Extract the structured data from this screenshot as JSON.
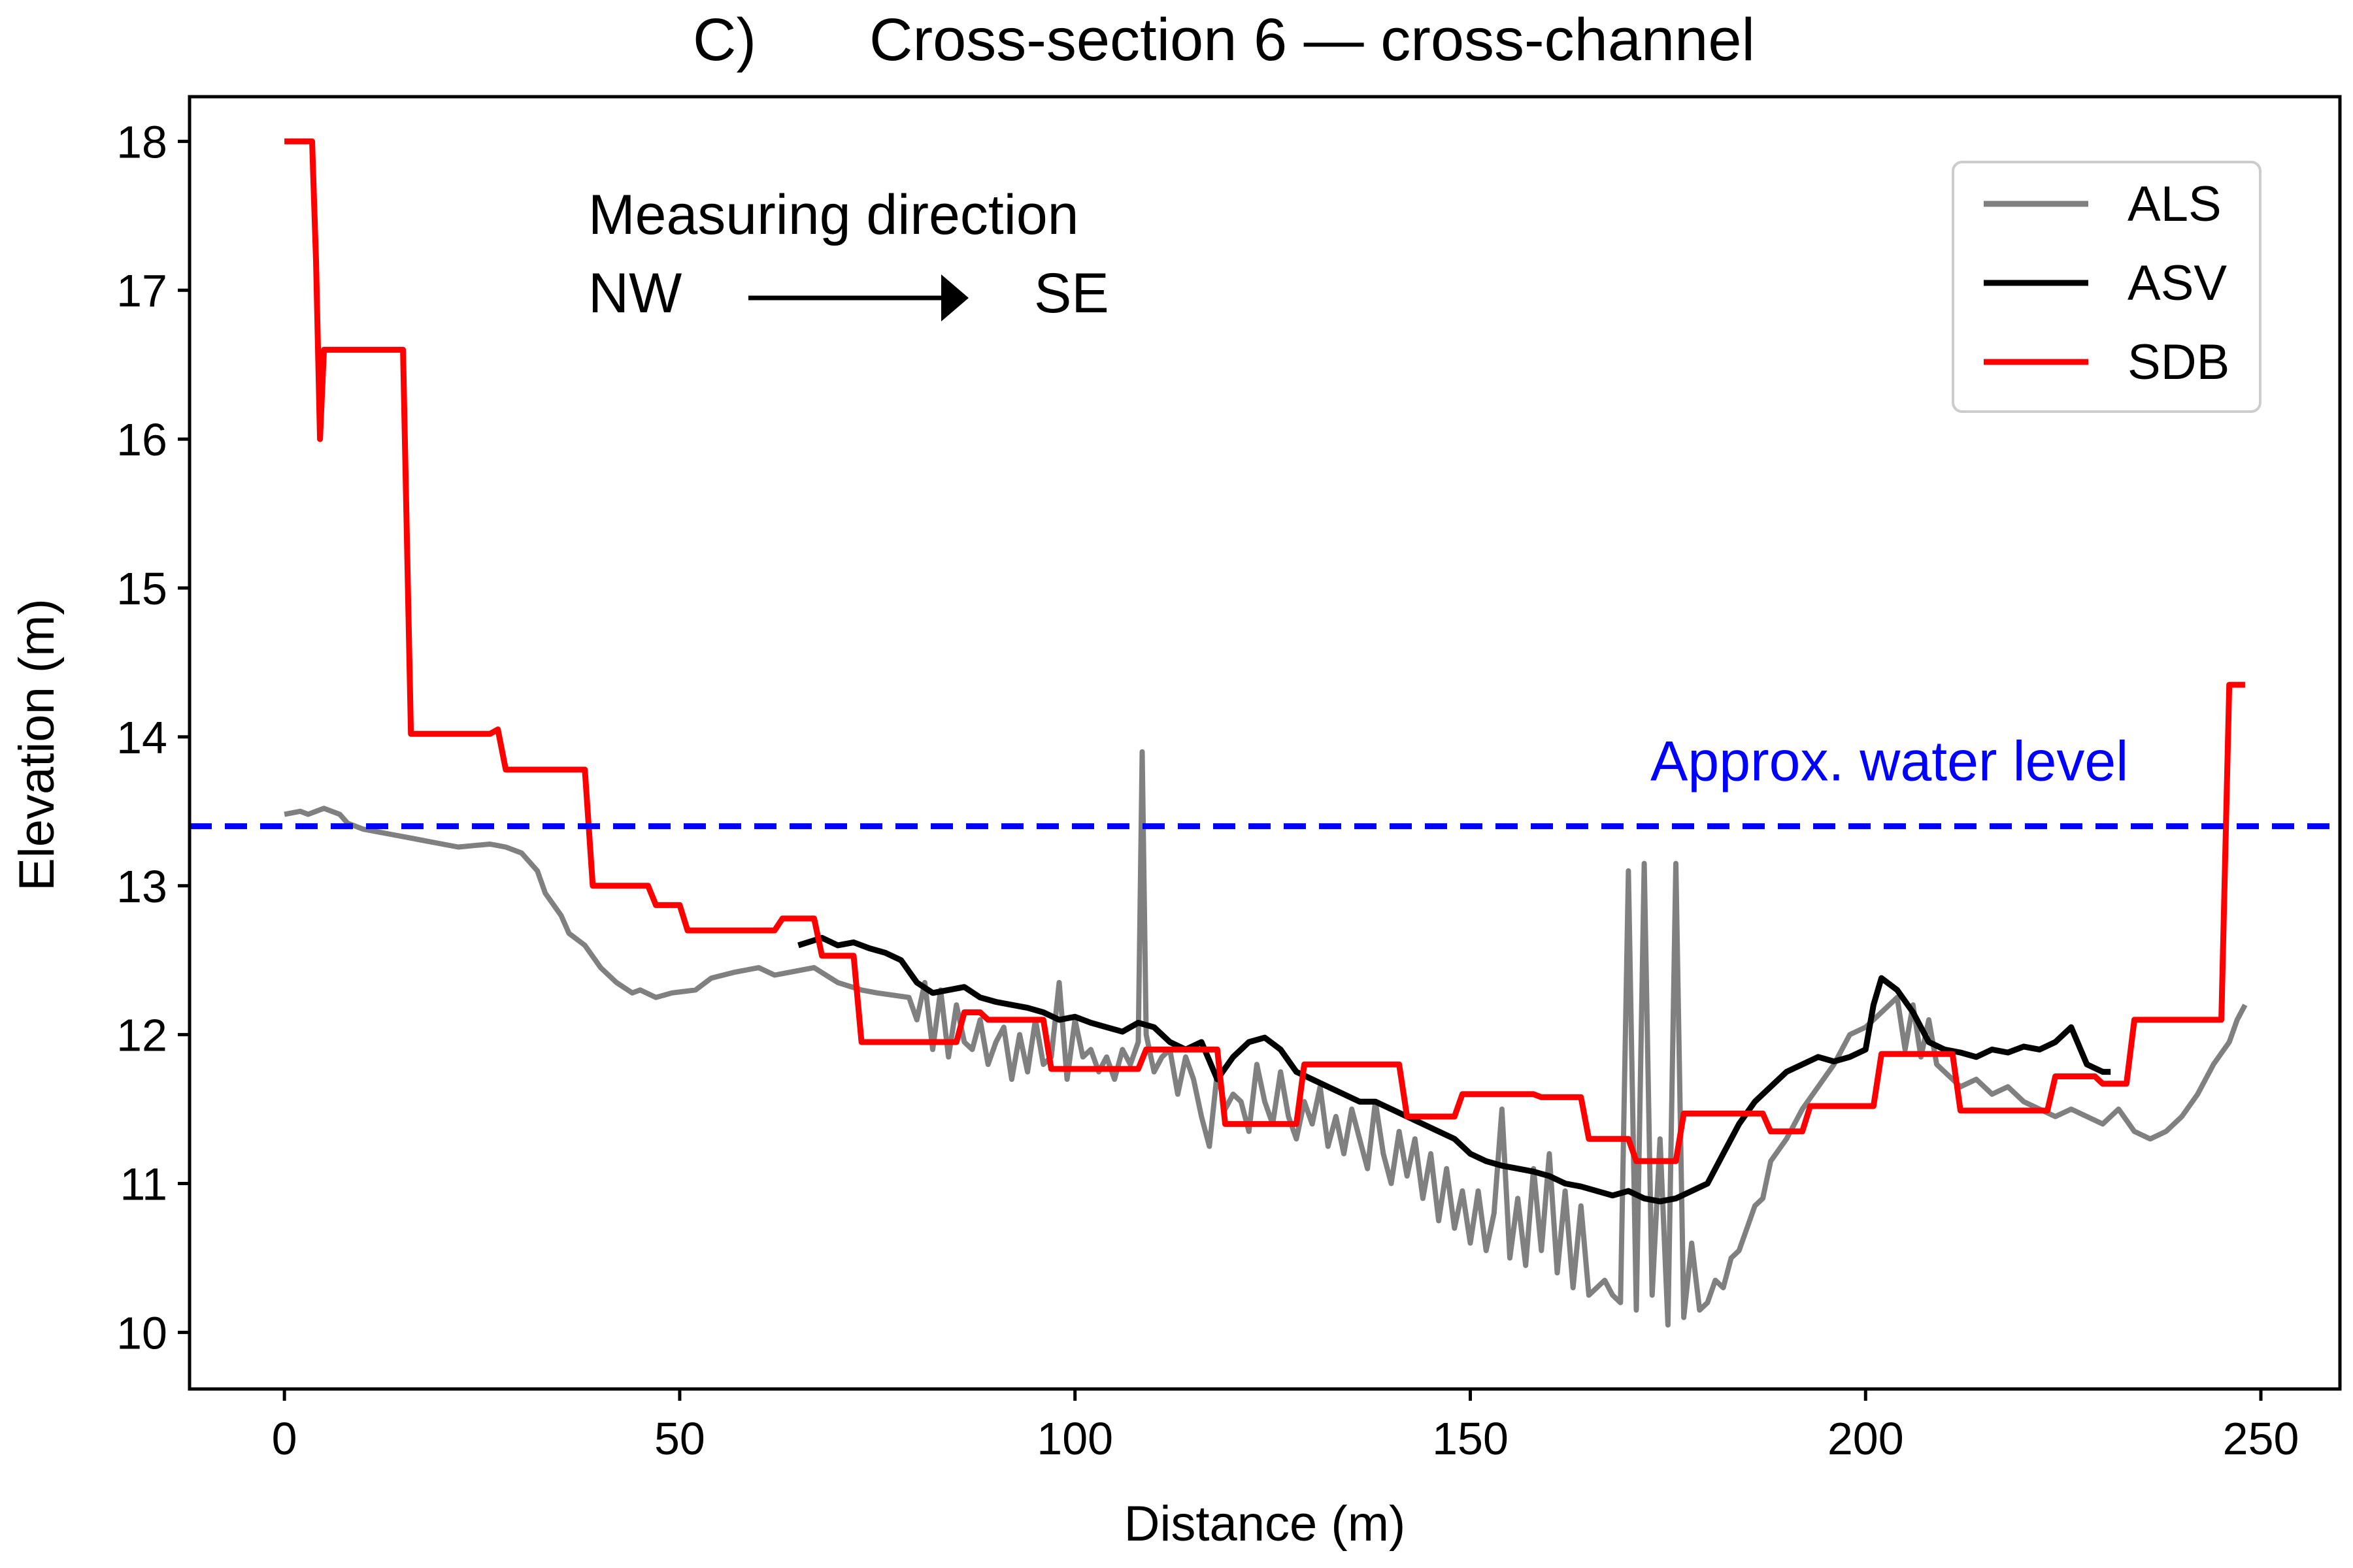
{
  "chart_data": {
    "type": "line",
    "panel_label": "C)",
    "title": "Cross-section 6 — cross-channel",
    "xlabel": "Distance (m)",
    "ylabel": "Elevation (m)",
    "xlim": [
      -12,
      260
    ],
    "ylim": [
      9.62,
      18.3
    ],
    "xticks": [
      0,
      50,
      100,
      150,
      200,
      250
    ],
    "yticks": [
      10,
      11,
      12,
      13,
      14,
      15,
      16,
      17,
      18
    ],
    "grid": false,
    "legend_position": "top-right",
    "water_level": {
      "y": 13.4,
      "label": "Approx. water level",
      "color": "#0000ff"
    },
    "direction_annotation": {
      "title": "Measuring direction",
      "from": "NW",
      "to": "SE"
    },
    "series": [
      {
        "name": "ALS",
        "color": "#808080",
        "x": [
          0,
          2,
          3,
          5,
          7,
          8,
          10,
          13,
          16,
          18,
          20,
          22,
          24,
          26,
          28,
          30,
          32,
          33,
          35,
          36,
          38,
          40,
          42,
          44,
          45,
          47,
          49,
          52,
          54,
          57,
          60,
          62,
          64,
          67,
          70,
          73,
          75,
          79,
          80,
          81,
          82,
          83,
          84,
          85,
          86,
          87,
          88,
          89,
          90,
          91,
          92,
          93,
          94,
          95,
          96,
          97,
          98,
          99,
          100,
          101,
          102,
          103,
          104,
          105,
          106,
          107,
          108,
          108.5,
          109,
          110,
          111,
          112,
          113,
          114,
          115,
          116,
          117,
          118,
          119,
          120,
          121,
          122,
          123,
          124,
          125,
          126,
          127,
          128,
          129,
          130,
          131,
          132,
          133,
          134,
          135,
          136,
          137,
          138,
          139,
          140,
          141,
          142,
          143,
          144,
          145,
          146,
          147,
          148,
          149,
          150,
          151,
          152,
          153,
          154,
          155,
          156,
          157,
          158,
          159,
          160,
          161,
          162,
          163,
          164,
          165,
          166,
          167,
          168,
          169,
          170,
          171,
          172,
          173,
          174,
          175,
          176,
          177,
          178,
          179,
          180,
          181,
          182,
          183,
          184,
          185,
          186,
          187,
          188,
          190,
          192,
          194,
          196,
          198,
          200,
          202,
          204,
          205,
          206,
          207,
          208,
          209,
          210,
          212,
          214,
          216,
          218,
          220,
          222,
          224,
          226,
          228,
          230,
          232,
          234,
          236,
          238,
          240,
          242,
          244,
          246,
          247,
          248
        ],
        "y": [
          13.48,
          13.5,
          13.48,
          13.52,
          13.48,
          13.42,
          13.38,
          13.35,
          13.32,
          13.3,
          13.28,
          13.26,
          13.27,
          13.28,
          13.26,
          13.22,
          13.1,
          12.95,
          12.8,
          12.68,
          12.6,
          12.45,
          12.35,
          12.28,
          12.3,
          12.25,
          12.28,
          12.3,
          12.38,
          12.42,
          12.45,
          12.4,
          12.42,
          12.45,
          12.35,
          12.3,
          12.28,
          12.25,
          12.1,
          12.35,
          11.9,
          12.3,
          11.85,
          12.2,
          11.95,
          11.9,
          12.1,
          11.8,
          11.95,
          12.05,
          11.7,
          12.0,
          11.75,
          12.1,
          11.8,
          11.85,
          12.35,
          11.7,
          12.1,
          11.85,
          11.9,
          11.75,
          11.85,
          11.7,
          11.9,
          11.8,
          11.95,
          13.9,
          12.0,
          11.75,
          11.85,
          11.9,
          11.6,
          11.85,
          11.7,
          11.45,
          11.25,
          11.75,
          11.5,
          11.6,
          11.55,
          11.35,
          11.8,
          11.55,
          11.4,
          11.75,
          11.45,
          11.3,
          11.55,
          11.4,
          11.65,
          11.25,
          11.45,
          11.2,
          11.5,
          11.3,
          11.1,
          11.55,
          11.2,
          11.0,
          11.35,
          11.05,
          11.3,
          10.9,
          11.2,
          10.75,
          11.1,
          10.7,
          10.95,
          10.6,
          10.95,
          10.55,
          10.8,
          11.5,
          10.5,
          10.9,
          10.45,
          11.1,
          10.55,
          11.2,
          10.4,
          10.95,
          10.3,
          10.85,
          10.25,
          10.3,
          10.35,
          10.25,
          10.2,
          13.1,
          10.15,
          13.15,
          10.25,
          11.3,
          10.05,
          13.15,
          10.1,
          10.6,
          10.15,
          10.2,
          10.35,
          10.3,
          10.5,
          10.55,
          10.7,
          10.85,
          10.9,
          11.15,
          11.3,
          11.5,
          11.65,
          11.8,
          12.0,
          12.05,
          12.15,
          12.25,
          11.9,
          12.2,
          11.85,
          12.1,
          11.8,
          11.75,
          11.65,
          11.7,
          11.6,
          11.65,
          11.55,
          11.5,
          11.45,
          11.5,
          11.45,
          11.4,
          11.5,
          11.35,
          11.3,
          11.35,
          11.45,
          11.6,
          11.8,
          11.95,
          12.1,
          12.2
        ]
      },
      {
        "name": "ASV",
        "color": "#000000",
        "x": [
          65,
          68,
          70,
          72,
          74,
          76,
          78,
          80,
          82,
          84,
          86,
          88,
          90,
          92,
          94,
          96,
          98,
          100,
          102,
          104,
          106,
          108,
          110,
          112,
          114,
          116,
          118,
          120,
          122,
          124,
          126,
          128,
          130,
          132,
          134,
          136,
          138,
          140,
          142,
          144,
          146,
          148,
          150,
          152,
          154,
          156,
          158,
          160,
          162,
          164,
          166,
          168,
          170,
          172,
          174,
          176,
          178,
          180,
          182,
          184,
          186,
          188,
          190,
          192,
          194,
          196,
          198,
          200,
          201,
          202,
          204,
          206,
          208,
          210,
          212,
          214,
          216,
          218,
          220,
          222,
          224,
          226,
          228,
          230,
          231
        ],
        "y": [
          12.6,
          12.65,
          12.6,
          12.62,
          12.58,
          12.55,
          12.5,
          12.35,
          12.28,
          12.3,
          12.32,
          12.25,
          12.22,
          12.2,
          12.18,
          12.15,
          12.1,
          12.12,
          12.08,
          12.05,
          12.02,
          12.08,
          12.05,
          11.95,
          11.9,
          11.95,
          11.7,
          11.85,
          11.95,
          11.98,
          11.9,
          11.75,
          11.7,
          11.65,
          11.6,
          11.55,
          11.55,
          11.5,
          11.45,
          11.4,
          11.35,
          11.3,
          11.2,
          11.15,
          11.12,
          11.1,
          11.08,
          11.05,
          11.0,
          10.98,
          10.95,
          10.92,
          10.95,
          10.9,
          10.88,
          10.9,
          10.95,
          11.0,
          11.2,
          11.4,
          11.55,
          11.65,
          11.75,
          11.8,
          11.85,
          11.82,
          11.85,
          11.9,
          12.2,
          12.38,
          12.3,
          12.15,
          11.95,
          11.9,
          11.88,
          11.85,
          11.9,
          11.88,
          11.92,
          11.9,
          11.95,
          12.05,
          11.8,
          11.75,
          11.75
        ]
      },
      {
        "name": "SDB",
        "color": "#ff0000",
        "x": [
          0,
          3,
          3.5,
          4,
          4.5,
          5,
          5.5,
          15,
          16,
          26,
          27,
          28,
          38,
          39,
          46,
          47,
          50,
          51,
          62,
          63,
          67,
          68,
          72,
          73,
          85,
          86,
          88,
          89,
          96,
          97,
          108,
          109,
          118,
          119,
          128,
          129,
          141,
          142,
          148,
          149,
          158,
          159,
          164,
          165,
          170,
          171,
          176,
          177,
          187,
          188,
          192,
          193,
          201,
          202,
          211,
          212,
          223,
          224,
          229,
          230,
          233,
          234,
          245,
          246,
          248
        ],
        "y": [
          18.0,
          18.0,
          18.0,
          17.2,
          16.0,
          16.6,
          16.6,
          16.6,
          14.02,
          14.02,
          14.05,
          13.78,
          13.78,
          13.0,
          13.0,
          12.87,
          12.87,
          12.7,
          12.7,
          12.78,
          12.78,
          12.53,
          12.53,
          11.95,
          11.95,
          12.15,
          12.15,
          12.1,
          12.1,
          11.77,
          11.77,
          11.9,
          11.9,
          11.4,
          11.4,
          11.8,
          11.8,
          11.45,
          11.45,
          11.6,
          11.6,
          11.58,
          11.58,
          11.3,
          11.3,
          11.15,
          11.15,
          11.47,
          11.47,
          11.35,
          11.35,
          11.52,
          11.52,
          11.87,
          11.87,
          11.49,
          11.49,
          11.72,
          11.72,
          11.67,
          11.67,
          12.1,
          12.1,
          14.35,
          14.35
        ]
      }
    ]
  }
}
